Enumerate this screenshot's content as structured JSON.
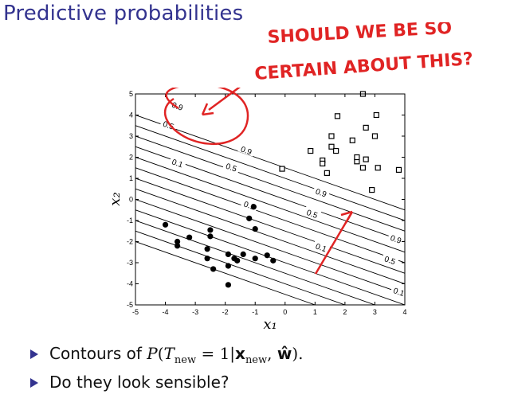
{
  "slide": {
    "title": "Predictive probabilities",
    "annotation_line1": "SHOULD WE BE SO",
    "annotation_line2": "CERTAIN ABOUT THIS?",
    "colors": {
      "title": "#33338f",
      "annotation": "#e02424",
      "bullet": "#33338f"
    }
  },
  "chart_data": {
    "type": "scatter",
    "xlabel": "x₁",
    "ylabel": "x₂",
    "xlim": [
      -5,
      4
    ],
    "ylim": [
      -5,
      5
    ],
    "xticks": [
      -5,
      -4,
      -3,
      -2,
      -1,
      0,
      1,
      2,
      3,
      4
    ],
    "yticks": [
      5,
      4,
      3,
      2,
      1,
      0,
      -1,
      -2,
      -3,
      -4,
      -5
    ],
    "series": [
      {
        "marker": "filled-circle",
        "points": [
          [
            -4.0,
            -1.2
          ],
          [
            -3.6,
            -2.0
          ],
          [
            -3.6,
            -2.2
          ],
          [
            -3.2,
            -1.8
          ],
          [
            -2.6,
            -2.8
          ],
          [
            -2.6,
            -2.35
          ],
          [
            -2.5,
            -1.75
          ],
          [
            -2.5,
            -1.45
          ],
          [
            -2.4,
            -3.3
          ],
          [
            -1.9,
            -2.6
          ],
          [
            -1.9,
            -3.15
          ],
          [
            -1.9,
            -4.05
          ],
          [
            -1.7,
            -2.8
          ],
          [
            -1.6,
            -2.9
          ],
          [
            -1.4,
            -2.6
          ],
          [
            -1.2,
            -0.9
          ],
          [
            -1.0,
            -1.4
          ],
          [
            -1.0,
            -2.8
          ],
          [
            -1.05,
            -0.35
          ],
          [
            -0.6,
            -2.65
          ],
          [
            -0.4,
            -2.9
          ]
        ]
      },
      {
        "marker": "open-square",
        "points": [
          [
            -0.1,
            1.45
          ],
          [
            0.85,
            2.3
          ],
          [
            1.25,
            1.85
          ],
          [
            1.25,
            1.7
          ],
          [
            1.4,
            1.25
          ],
          [
            1.55,
            2.5
          ],
          [
            1.55,
            3.0
          ],
          [
            1.7,
            2.3
          ],
          [
            1.75,
            3.95
          ],
          [
            2.25,
            2.8
          ],
          [
            2.4,
            1.8
          ],
          [
            2.4,
            2.0
          ],
          [
            2.6,
            1.5
          ],
          [
            2.6,
            5.0
          ],
          [
            2.7,
            1.9
          ],
          [
            2.7,
            3.4
          ],
          [
            2.9,
            0.45
          ],
          [
            3.0,
            3.0
          ],
          [
            3.05,
            4.0
          ],
          [
            3.1,
            1.5
          ],
          [
            3.8,
            1.4
          ]
        ]
      }
    ],
    "contours": {
      "levels": [
        0.1,
        0.5,
        0.9
      ],
      "direction": [
        -0.5,
        -1
      ],
      "offsets": [
        -4.5,
        -4,
        -3.5,
        -3,
        -2.5,
        -2,
        -1.5,
        -1,
        -0.5,
        0,
        0.5,
        1,
        1.5
      ]
    },
    "contour_labels": [
      {
        "text": "0.9",
        "x": -3.6,
        "y": 4.4
      },
      {
        "text": "0.5",
        "x": -3.9,
        "y": 3.5
      },
      {
        "text": "0.1",
        "x": -3.6,
        "y": 1.7
      },
      {
        "text": "0.9",
        "x": -1.3,
        "y": 2.3
      },
      {
        "text": "0.5",
        "x": -1.8,
        "y": 1.5
      },
      {
        "text": "0.1",
        "x": -1.2,
        "y": -0.3
      },
      {
        "text": "0.9",
        "x": 1.2,
        "y": 0.3
      },
      {
        "text": "0.5",
        "x": 0.9,
        "y": -0.7
      },
      {
        "text": "0.1",
        "x": 1.2,
        "y": -2.3
      },
      {
        "text": "0.9",
        "x": 3.7,
        "y": -1.9
      },
      {
        "text": "0.5",
        "x": 3.5,
        "y": -2.9
      },
      {
        "text": "0.1",
        "x": 3.8,
        "y": -4.4
      }
    ]
  },
  "bullets": {
    "item1_prefix": "Contours of ",
    "item2": "Do they look sensible?"
  }
}
